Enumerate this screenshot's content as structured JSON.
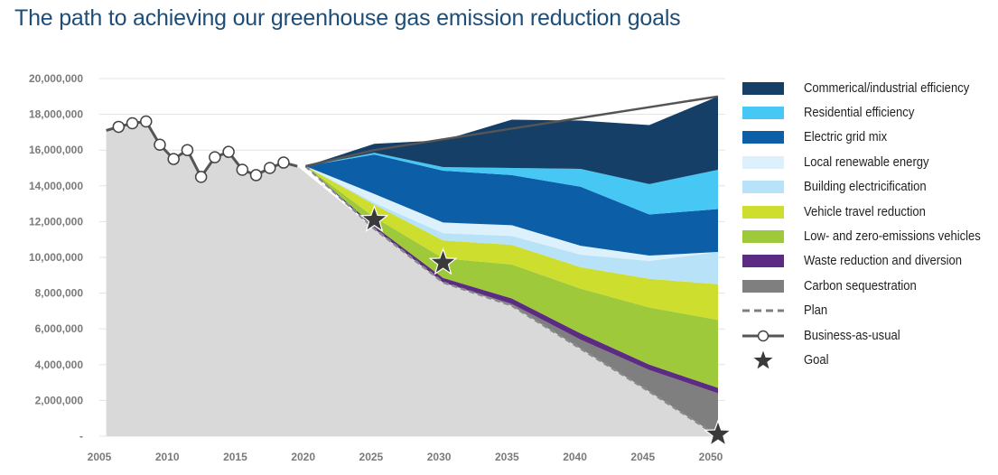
{
  "title": "The path to achieving our greenhouse gas emission reduction goals",
  "chart_data": {
    "type": "area",
    "ylim": [
      0,
      20000000
    ],
    "xlim": [
      2005,
      2050
    ],
    "y_ticks": [
      "20,000,000",
      "18,000,000",
      "16,000,000",
      "14,000,000",
      "12,000,000",
      "10,000,000",
      "8,000,000",
      "6,000,000",
      "4,000,000",
      "2,000,000",
      "-"
    ],
    "y_tick_values": [
      20000000,
      18000000,
      16000000,
      14000000,
      12000000,
      10000000,
      8000000,
      6000000,
      4000000,
      2000000,
      0
    ],
    "x_ticks": [
      "2005",
      "2010",
      "2015",
      "2020",
      "2025",
      "2030",
      "2035",
      "2040",
      "2045",
      "2050"
    ],
    "x_tick_values": [
      2005,
      2010,
      2015,
      2020,
      2025,
      2030,
      2035,
      2040,
      2045,
      2050
    ],
    "historical": {
      "x": [
        2005.5,
        2006.4,
        2007.4,
        2008.4,
        2009.4,
        2010.4,
        2011.4,
        2012.4,
        2013.4,
        2014.4,
        2015.4,
        2016.4,
        2017.4,
        2018.4,
        2019.4
      ],
      "y": [
        17100000,
        17300000,
        17500000,
        17600000,
        16300000,
        15500000,
        16000000,
        14500000,
        15600000,
        15900000,
        14900000,
        14600000,
        15000000,
        15300000,
        15100000
      ],
      "marker_x": [
        2006.4,
        2007.4,
        2008.4,
        2009.4,
        2010.4,
        2011.4,
        2012.4,
        2013.4,
        2014.4,
        2015.4,
        2016.4,
        2017.4,
        2018.4
      ]
    },
    "projection_x": [
      2020,
      2025,
      2030,
      2035,
      2040,
      2045,
      2050
    ],
    "plan": [
      15100000,
      11600000,
      8600000,
      7300000,
      4900000,
      2500000,
      0
    ],
    "series": [
      {
        "name": "Carbon sequestration",
        "color": "#7f7f7f",
        "values": [
          0,
          0,
          0,
          100000,
          500000,
          1200000,
          2400000
        ]
      },
      {
        "name": "Waste reduction and diversion",
        "color": "#5b2c81",
        "values": [
          0,
          150000,
          250000,
          300000,
          350000,
          300000,
          300000
        ]
      },
      {
        "name": "Low- and zero-emissions vehicles",
        "color": "#9dc93b",
        "values": [
          0,
          500000,
          1100000,
          1900000,
          2500000,
          3200000,
          3800000
        ]
      },
      {
        "name": "Vehicle travel reduction",
        "color": "#cdde2f",
        "values": [
          0,
          700000,
          1000000,
          1100000,
          1200000,
          1600000,
          2000000
        ]
      },
      {
        "name": "Building electricification",
        "color": "#b8e2f7",
        "values": [
          0,
          100000,
          400000,
          500000,
          700000,
          1000000,
          1800000
        ]
      },
      {
        "name": "Local renewable energy",
        "color": "#ddf1fc",
        "values": [
          0,
          500000,
          600000,
          600000,
          500000,
          300000,
          0
        ]
      },
      {
        "name": "Electric grid mix",
        "color": "#0c5ea7",
        "values": [
          0,
          2200000,
          2900000,
          2800000,
          3300000,
          2300000,
          2400000
        ]
      },
      {
        "name": "Residential efficiency",
        "color": "#47c7f3",
        "values": [
          0,
          100000,
          200000,
          400000,
          1000000,
          1700000,
          2200000
        ]
      },
      {
        "name": "Commerical/industrial efficiency",
        "color": "#153f66",
        "values": [
          0,
          500000,
          1500000,
          2700000,
          2700000,
          3300000,
          4100000
        ]
      }
    ],
    "bau_line": [
      15100000,
      16000000,
      16600000,
      17200000,
      17800000,
      18400000,
      19000000
    ],
    "goals": {
      "x": [
        2025,
        2030,
        2050
      ],
      "y": [
        12100000,
        9700000,
        0
      ]
    }
  },
  "legend": [
    {
      "label": "Commerical/industrial efficiency",
      "kind": "box",
      "color": "#153f66"
    },
    {
      "label": "Residential efficiency",
      "kind": "box",
      "color": "#47c7f3"
    },
    {
      "label": "Electric grid mix",
      "kind": "box",
      "color": "#0c5ea7"
    },
    {
      "label": "Local renewable energy",
      "kind": "box",
      "color": "#ddf1fc"
    },
    {
      "label": "Building electricification",
      "kind": "box",
      "color": "#b8e2f7"
    },
    {
      "label": "Vehicle travel reduction",
      "kind": "box",
      "color": "#cdde2f"
    },
    {
      "label": "Low- and zero-emissions vehicles",
      "kind": "box",
      "color": "#9dc93b"
    },
    {
      "label": "Waste reduction and diversion",
      "kind": "box",
      "color": "#5b2c81"
    },
    {
      "label": "Carbon sequestration",
      "kind": "box",
      "color": "#7f7f7f"
    },
    {
      "label": "Plan",
      "kind": "dash",
      "color": "#7f7f7f"
    },
    {
      "label": "Business-as-usual",
      "kind": "circle-line",
      "color": "#555555"
    },
    {
      "label": "Goal",
      "kind": "star",
      "color": "#3a3a3a"
    }
  ],
  "colors": {
    "title": "#1d4e79",
    "base_fill": "#d9d9d9",
    "bau": "#555555",
    "grid": "#e3e3e3",
    "star": "#3a3a3a"
  }
}
